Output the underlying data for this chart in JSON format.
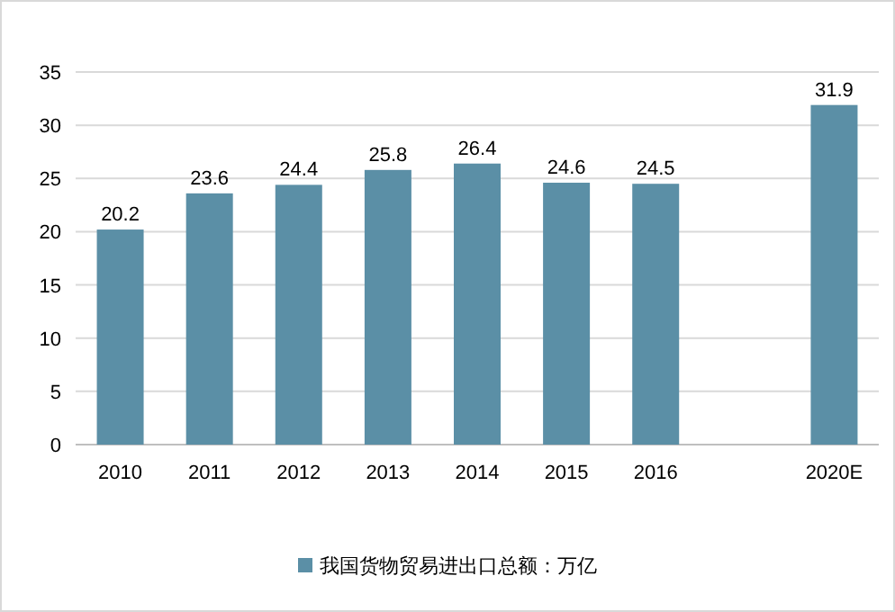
{
  "chart_data": {
    "type": "bar",
    "categories": [
      "2010",
      "2011",
      "2012",
      "2013",
      "2014",
      "2015",
      "2016",
      null,
      "2020E"
    ],
    "series": [
      {
        "name": "我国货物贸易进出口总额：万亿",
        "color": "#5b8fa6",
        "values": [
          20.2,
          23.6,
          24.4,
          25.8,
          26.4,
          24.6,
          24.5,
          null,
          31.9
        ]
      }
    ],
    "ylim": [
      0,
      35
    ],
    "yticks": [
      0,
      5,
      10,
      15,
      20,
      25,
      30,
      35
    ],
    "grid": "y",
    "legend": "bottom",
    "data_labels": true
  }
}
